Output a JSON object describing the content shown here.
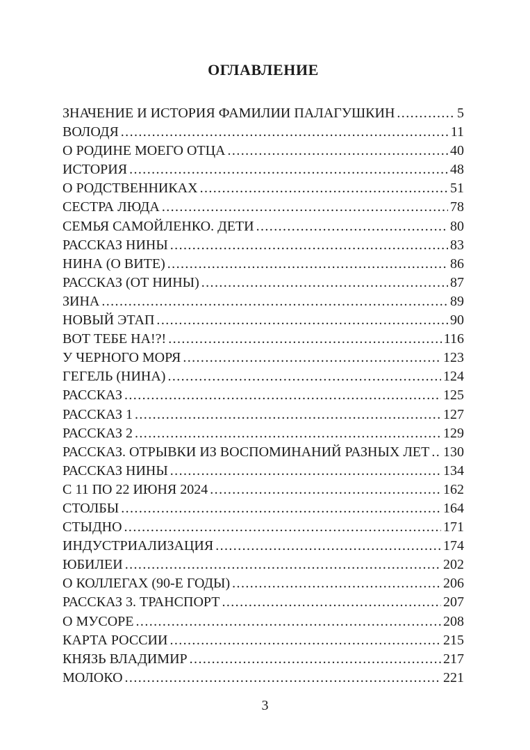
{
  "page": {
    "title": "ОГЛАВЛЕНИЕ",
    "page_number": "3"
  },
  "colors": {
    "background": "#ffffff",
    "text": "#1c1c1c"
  },
  "toc": {
    "entries": [
      {
        "title": "ЗНАЧЕНИЕ И ИСТОРИЯ ФАМИЛИИ ПАЛАГУШКИН",
        "page": "5"
      },
      {
        "title": "ВОЛОДЯ",
        "page": "11"
      },
      {
        "title": "О РОДИНЕ МОЕГО ОТЦА",
        "page": "40"
      },
      {
        "title": "ИСТОРИЯ",
        "page": "48"
      },
      {
        "title": "О РОДСТВЕННИКАХ",
        "page": "51"
      },
      {
        "title": "СЕСТРА ЛЮДА",
        "page": "78"
      },
      {
        "title": "СЕМЬЯ САМОЙЛЕНКО. ДЕТИ",
        "page": "80"
      },
      {
        "title": "РАССКАЗ НИНЫ",
        "page": "83"
      },
      {
        "title": "НИНА (О ВИТЕ)",
        "page": "86"
      },
      {
        "title": "РАССКАЗ (ОТ НИНЫ)",
        "page": "87"
      },
      {
        "title": "ЗИНА",
        "page": "89"
      },
      {
        "title": "НОВЫЙ ЭТАП",
        "page": "90"
      },
      {
        "title": "ВОТ ТЕБЕ НА!?!",
        "page": "116"
      },
      {
        "title": "У ЧЕРНОГО МОРЯ",
        "page": "123"
      },
      {
        "title": "ГЕГЕЛЬ (НИНА)",
        "page": "124"
      },
      {
        "title": "РАССКАЗ",
        "page": "125"
      },
      {
        "title": "РАССКАЗ 1",
        "page": "127"
      },
      {
        "title": "РАССКАЗ 2",
        "page": "129"
      },
      {
        "title": "РАССКАЗ. ОТРЫВКИ ИЗ ВОСПОМИНАНИЙ  РАЗНЫХ ЛЕТ",
        "page": "130"
      },
      {
        "title": "РАССКАЗ НИНЫ",
        "page": "134"
      },
      {
        "title": "С 11 ПО 22 ИЮНЯ 2024",
        "page": "162"
      },
      {
        "title": "СТОЛБЫ",
        "page": "164"
      },
      {
        "title": "СТЫДНО",
        "page": "171"
      },
      {
        "title": "ИНДУСТРИАЛИЗАЦИЯ",
        "page": "174"
      },
      {
        "title": "ЮБИЛЕИ",
        "page": "202"
      },
      {
        "title": "О КОЛЛЕГАХ (90-Е ГОДЫ)",
        "page": "206"
      },
      {
        "title": "РАССКАЗ 3. ТРАНСПОРТ",
        "page": "207"
      },
      {
        "title": "О МУСОРЕ",
        "page": "208"
      },
      {
        "title": "КАРТА РОССИИ",
        "page": "215"
      },
      {
        "title": "КНЯЗЬ ВЛАДИМИР",
        "page": "217"
      },
      {
        "title": "МОЛОКО",
        "page": "221"
      }
    ]
  }
}
